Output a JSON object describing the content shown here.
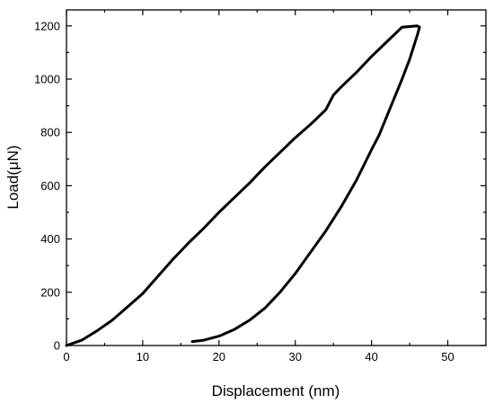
{
  "chart_data": {
    "type": "line",
    "title": "",
    "xlabel": "Displacement (nm)",
    "ylabel": "Load(μN)",
    "xlim": [
      0,
      55
    ],
    "ylim": [
      0,
      1260
    ],
    "x_ticks": [
      0,
      10,
      20,
      30,
      40,
      50
    ],
    "y_ticks": [
      0,
      200,
      400,
      600,
      800,
      1000,
      1200
    ],
    "x_tick_labels": [
      "0",
      "10",
      "20",
      "30",
      "40",
      "50"
    ],
    "y_tick_labels": [
      "0",
      "200",
      "400",
      "600",
      "800",
      "1000",
      "1200"
    ],
    "grid": false,
    "legend": "none",
    "line_color": "#000000",
    "series": [
      {
        "x": [
          0,
          2,
          4,
          6,
          8,
          10,
          12,
          14,
          16,
          18,
          20,
          22,
          24,
          26,
          28,
          30,
          32,
          34,
          35,
          36,
          38,
          40,
          42,
          44,
          46,
          46.3,
          46,
          45,
          44,
          43,
          42,
          41,
          40,
          38,
          36,
          34,
          32,
          30,
          28,
          26,
          24,
          22,
          20,
          18,
          16.5
        ],
        "y": [
          0,
          20,
          55,
          95,
          145,
          195,
          260,
          325,
          385,
          440,
          500,
          555,
          610,
          670,
          725,
          780,
          830,
          885,
          940,
          970,
          1025,
          1085,
          1140,
          1195,
          1200,
          1195,
          1165,
          1075,
          1000,
          930,
          860,
          790,
          735,
          620,
          520,
          430,
          350,
          270,
          200,
          140,
          95,
          60,
          35,
          20,
          15
        ]
      }
    ]
  }
}
